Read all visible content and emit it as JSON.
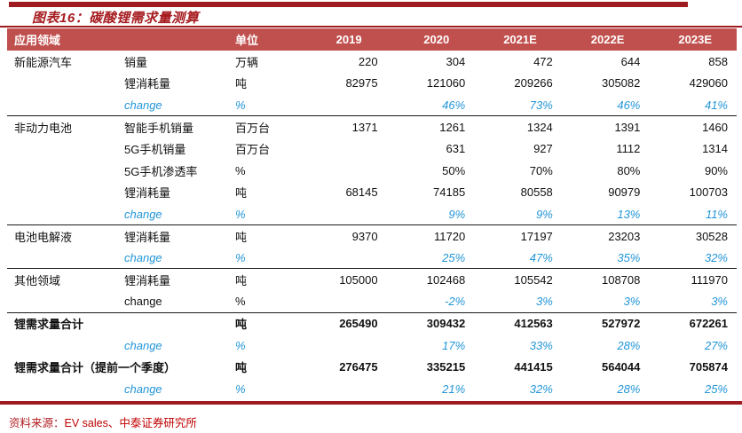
{
  "title": "图表16：碳酸锂需求量测算",
  "source": {
    "label": "资料来源：",
    "value": "EV sales、中泰证券研究所"
  },
  "colors": {
    "accent_dark_red": "#9E1B20",
    "header_background": "#C0504D",
    "header_text": "#FFFFFF",
    "change_blue": "#2396D8",
    "title_red": "#A61C20",
    "source_red": "#C00000"
  },
  "table": {
    "headers": [
      "应用领域",
      "",
      "单位",
      "2019",
      "2020",
      "2021E",
      "2022E",
      "2023E"
    ],
    "rows": [
      {
        "group": "新能源汽车",
        "label": "销量",
        "unit": "万辆",
        "values": [
          "220",
          "304",
          "472",
          "644",
          "858"
        ],
        "type": "normal",
        "sep": false
      },
      {
        "group": "",
        "label": "锂消耗量",
        "unit": "吨",
        "values": [
          "82975",
          "121060",
          "209266",
          "305082",
          "429060"
        ],
        "type": "normal",
        "sep": false
      },
      {
        "group": "",
        "label": "change",
        "unit": "%",
        "values": [
          "",
          "46%",
          "73%",
          "46%",
          "41%"
        ],
        "type": "change",
        "sep": true
      },
      {
        "group": "非动力电池",
        "label": "智能手机销量",
        "unit": "百万台",
        "values": [
          "1371",
          "1261",
          "1324",
          "1391",
          "1460"
        ],
        "type": "normal",
        "sep": false
      },
      {
        "group": "",
        "label": "5G手机销量",
        "unit": "百万台",
        "values": [
          "",
          "631",
          "927",
          "1112",
          "1314"
        ],
        "type": "normal",
        "sep": false
      },
      {
        "group": "",
        "label": "5G手机渗透率",
        "unit": "%",
        "values": [
          "",
          "50%",
          "70%",
          "80%",
          "90%"
        ],
        "type": "normal",
        "sep": false
      },
      {
        "group": "",
        "label": "锂消耗量",
        "unit": "吨",
        "values": [
          "68145",
          "74185",
          "80558",
          "90979",
          "100703"
        ],
        "type": "normal",
        "sep": false
      },
      {
        "group": "",
        "label": "change",
        "unit": "%",
        "values": [
          "",
          "9%",
          "9%",
          "13%",
          "11%"
        ],
        "type": "change",
        "sep": true
      },
      {
        "group": "电池电解液",
        "label": "锂消耗量",
        "unit": "吨",
        "values": [
          "9370",
          "11720",
          "17197",
          "23203",
          "30528"
        ],
        "type": "normal",
        "sep": false
      },
      {
        "group": "",
        "label": "change",
        "unit": "%",
        "values": [
          "",
          "25%",
          "47%",
          "35%",
          "32%"
        ],
        "type": "change",
        "sep": true
      },
      {
        "group": "其他领域",
        "label": "锂消耗量",
        "unit": "吨",
        "values": [
          "105000",
          "102468",
          "105542",
          "108708",
          "111970"
        ],
        "type": "normal",
        "sep": false
      },
      {
        "group": "",
        "label": "change",
        "unit": "%",
        "values": [
          "",
          "-2%",
          "3%",
          "3%",
          "3%"
        ],
        "type": "change-black",
        "sep": true
      },
      {
        "group": "锂需求量合计",
        "label": "",
        "unit": "吨",
        "values": [
          "265490",
          "309432",
          "412563",
          "527972",
          "672261"
        ],
        "type": "total",
        "sep": false
      },
      {
        "group": "",
        "label": "change",
        "unit": "%",
        "values": [
          "",
          "17%",
          "33%",
          "28%",
          "27%"
        ],
        "type": "change",
        "sep": false
      },
      {
        "group": "锂需求量合计（提前一个季度）",
        "label": "",
        "unit": "吨",
        "values": [
          "276475",
          "335215",
          "441415",
          "564044",
          "705874"
        ],
        "type": "total",
        "sep": false
      },
      {
        "group": "",
        "label": "change",
        "unit": "%",
        "values": [
          "",
          "21%",
          "32%",
          "28%",
          "25%"
        ],
        "type": "change",
        "sep": false
      }
    ]
  }
}
